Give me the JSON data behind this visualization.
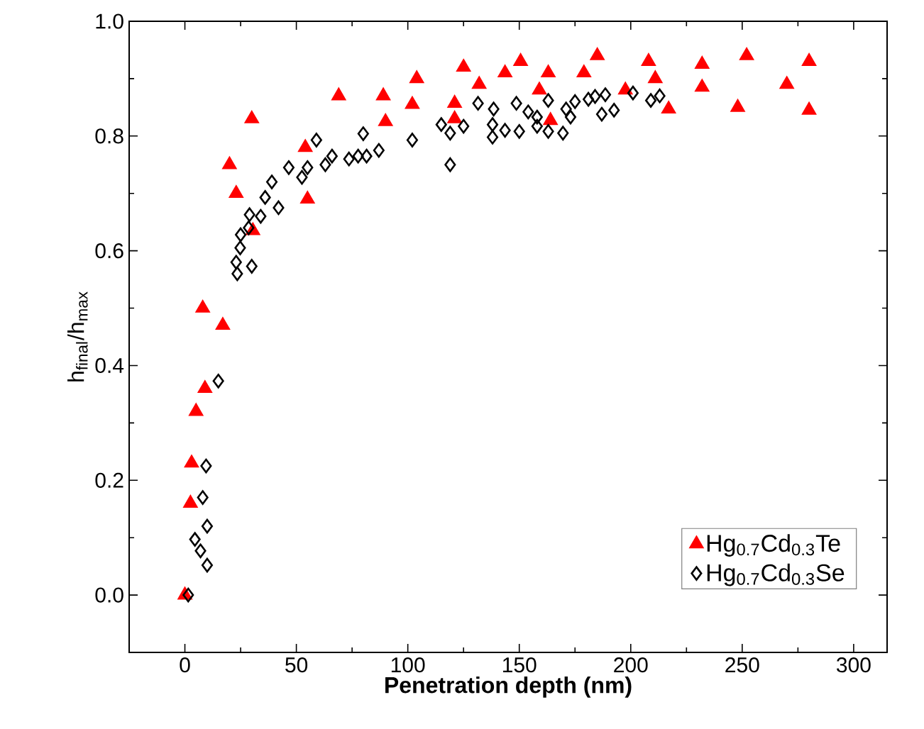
{
  "chart_data": {
    "type": "scatter",
    "xlabel": "**Penetration depth (nm)**",
    "ylabel": "h$_{final}$/h$_{max}$",
    "xlim": [
      -25,
      315
    ],
    "ylim": [
      -0.1,
      1.0
    ],
    "xticks": [
      0,
      50,
      100,
      150,
      200,
      250,
      300
    ],
    "yticks": [
      {
        "value": 0,
        "label": "0.0"
      },
      {
        "value": 0.2,
        "label": "0.2"
      },
      {
        "value": 0.4,
        "label": "0.4"
      },
      {
        "value": 0.6,
        "label": "0.6"
      },
      {
        "value": 0.8,
        "label": "0.8"
      },
      {
        "value": 1.0,
        "label": "1.0"
      }
    ],
    "grid": false,
    "legend": "bottom right",
    "series": [
      {
        "name": "Hg$_{0.7}$Cd$_{0.3}$Te",
        "color": "#ff0000",
        "marker": "triangle",
        "x": [
          0,
          2.5,
          3,
          5,
          9,
          8,
          17,
          20,
          23,
          30,
          30.5,
          54,
          55,
          69,
          89,
          90,
          102,
          104,
          121,
          121,
          125,
          132,
          143.6,
          150.6,
          159,
          163,
          164,
          179,
          185,
          197.6,
          208,
          211,
          217,
          232,
          232,
          248,
          252,
          270,
          280,
          280
        ],
        "values": [
          0,
          0.16,
          0.23,
          0.32,
          0.36,
          0.5,
          0.47,
          0.75,
          0.7,
          0.83,
          0.635,
          0.78,
          0.69,
          0.87,
          0.87,
          0.825,
          0.855,
          0.9,
          0.857,
          0.83,
          0.92,
          0.89,
          0.91,
          0.93,
          0.88,
          0.91,
          0.827,
          0.91,
          0.94,
          0.88,
          0.93,
          0.9,
          0.847,
          0.925,
          0.885,
          0.85,
          0.94,
          0.89,
          0.93,
          0.845
        ]
      },
      {
        "name": "Hg$_{0.7}$Cd$_{0.3}$Se",
        "color": "#000000",
        "marker": "diamond",
        "x": [
          1.5,
          4.5,
          7,
          10,
          10,
          8,
          9.5,
          15,
          23.5,
          23,
          30,
          24.8,
          25,
          28.6,
          29,
          34,
          36,
          39,
          42,
          46.6,
          52.5,
          55,
          59,
          63,
          66,
          73.6,
          77.7,
          80,
          81.5,
          87,
          102,
          115,
          119,
          119,
          125,
          131.5,
          138.5,
          138,
          138,
          143.6,
          148.7,
          150,
          154,
          158,
          158,
          163,
          163,
          169.6,
          171,
          173,
          175,
          181,
          184,
          188.6,
          187,
          192.5,
          201,
          209,
          213
        ],
        "values": [
          0,
          0.097,
          0.077,
          0.052,
          0.12,
          0.17,
          0.225,
          0.373,
          0.56,
          0.58,
          0.573,
          0.605,
          0.628,
          0.64,
          0.663,
          0.66,
          0.693,
          0.72,
          0.675,
          0.745,
          0.728,
          0.745,
          0.793,
          0.75,
          0.765,
          0.76,
          0.765,
          0.804,
          0.765,
          0.775,
          0.793,
          0.82,
          0.75,
          0.805,
          0.817,
          0.857,
          0.847,
          0.82,
          0.798,
          0.81,
          0.857,
          0.808,
          0.842,
          0.833,
          0.817,
          0.862,
          0.808,
          0.805,
          0.847,
          0.833,
          0.86,
          0.864,
          0.869,
          0.872,
          0.838,
          0.845,
          0.875,
          0.862,
          0.87
        ]
      }
    ]
  }
}
